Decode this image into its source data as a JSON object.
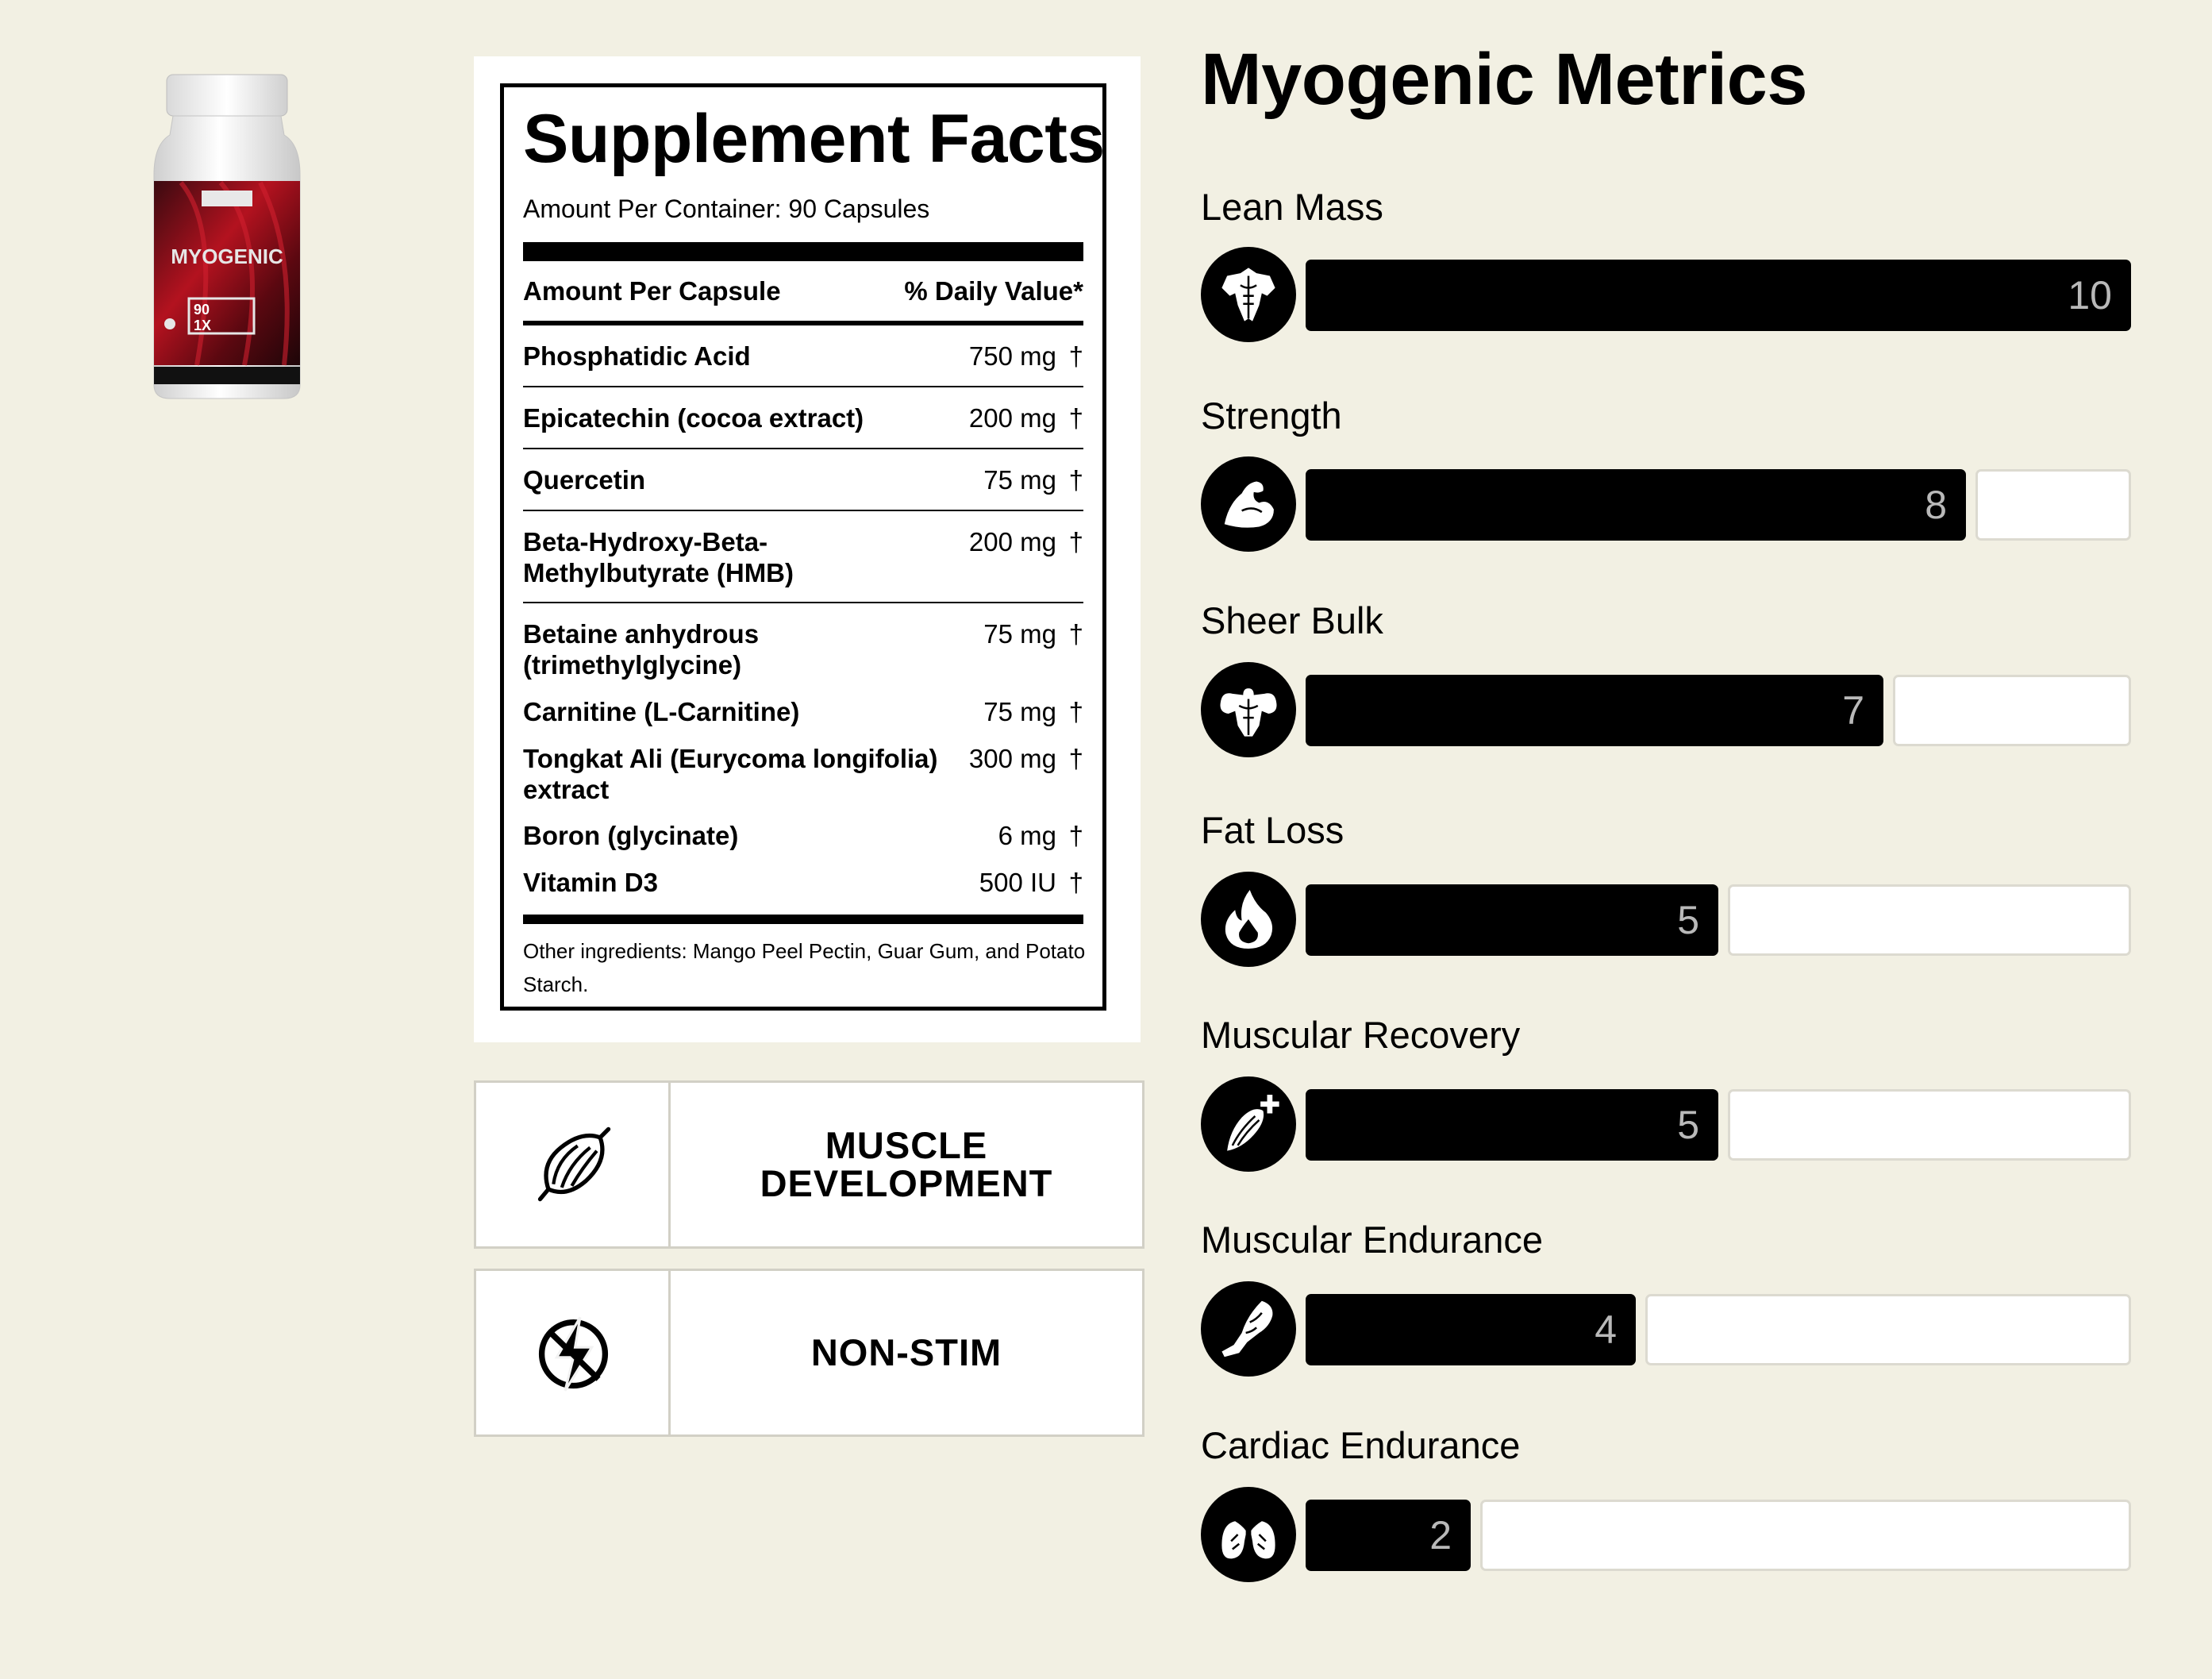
{
  "product": {
    "bottle_brand_text": "MYOGENIC",
    "bottle_badge": "90 CAPSULES 1X PER SERVING"
  },
  "facts": {
    "title": "Supplement Facts",
    "subtitle": "Amount Per Container: 90 Capsules",
    "col_amount": "Amount Per Capsule",
    "col_dv": "% Daily Value*",
    "ingredients": [
      {
        "name": "Phosphatidic Acid",
        "amount": "750 mg",
        "mark": "†"
      },
      {
        "name": "Epicatechin (cocoa extract)",
        "amount": "200 mg",
        "mark": "†"
      },
      {
        "name": "Quercetin",
        "amount": "75 mg",
        "mark": "†"
      },
      {
        "name": "Beta-Hydroxy-Beta-Methylbutyrate (HMB)",
        "amount": "200 mg",
        "mark": "†"
      },
      {
        "name": "Betaine anhydrous (trimethylglycine)",
        "amount": "75 mg",
        "mark": "†"
      },
      {
        "name": "Carnitine (L-Carnitine)",
        "amount": "75 mg",
        "mark": "†"
      },
      {
        "name": "Tongkat Ali (Eurycoma longifolia) extract",
        "amount": "300 mg",
        "mark": "†"
      },
      {
        "name": "Boron (glycinate)",
        "amount": "6 mg",
        "mark": "†"
      },
      {
        "name": "Vitamin D3",
        "amount": "500 IU",
        "mark": "†"
      }
    ],
    "other_ingredients": "Other ingredients: Mango Peel Pectin, Guar Gum, and Potato Starch."
  },
  "badges": [
    {
      "label": "MUSCLE DEVELOPMENT",
      "icon": "muscle-fiber-icon"
    },
    {
      "label": "NON-STIM",
      "icon": "no-stimulant-icon"
    }
  ],
  "metrics": {
    "title": "Myogenic Metrics",
    "max": 10,
    "items": [
      {
        "label": "Lean Mass",
        "value": 10,
        "icon": "torso-icon"
      },
      {
        "label": "Strength",
        "value": 8,
        "icon": "flexed-arm-icon"
      },
      {
        "label": "Sheer Bulk",
        "value": 7,
        "icon": "bodybuilder-icon"
      },
      {
        "label": "Fat Loss",
        "value": 5,
        "icon": "flame-icon"
      },
      {
        "label": "Muscular Recovery",
        "value": 5,
        "icon": "muscle-repair-icon"
      },
      {
        "label": "Muscular Endurance",
        "value": 4,
        "icon": "running-leg-icon"
      },
      {
        "label": "Cardiac Endurance",
        "value": 2,
        "icon": "lungs-icon"
      }
    ]
  }
}
